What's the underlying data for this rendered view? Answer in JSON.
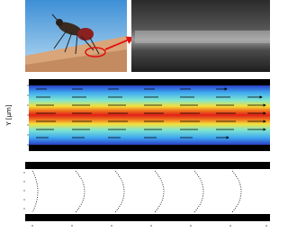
{
  "heatmap": {
    "y_label": "Y [µm]"
  }
}
